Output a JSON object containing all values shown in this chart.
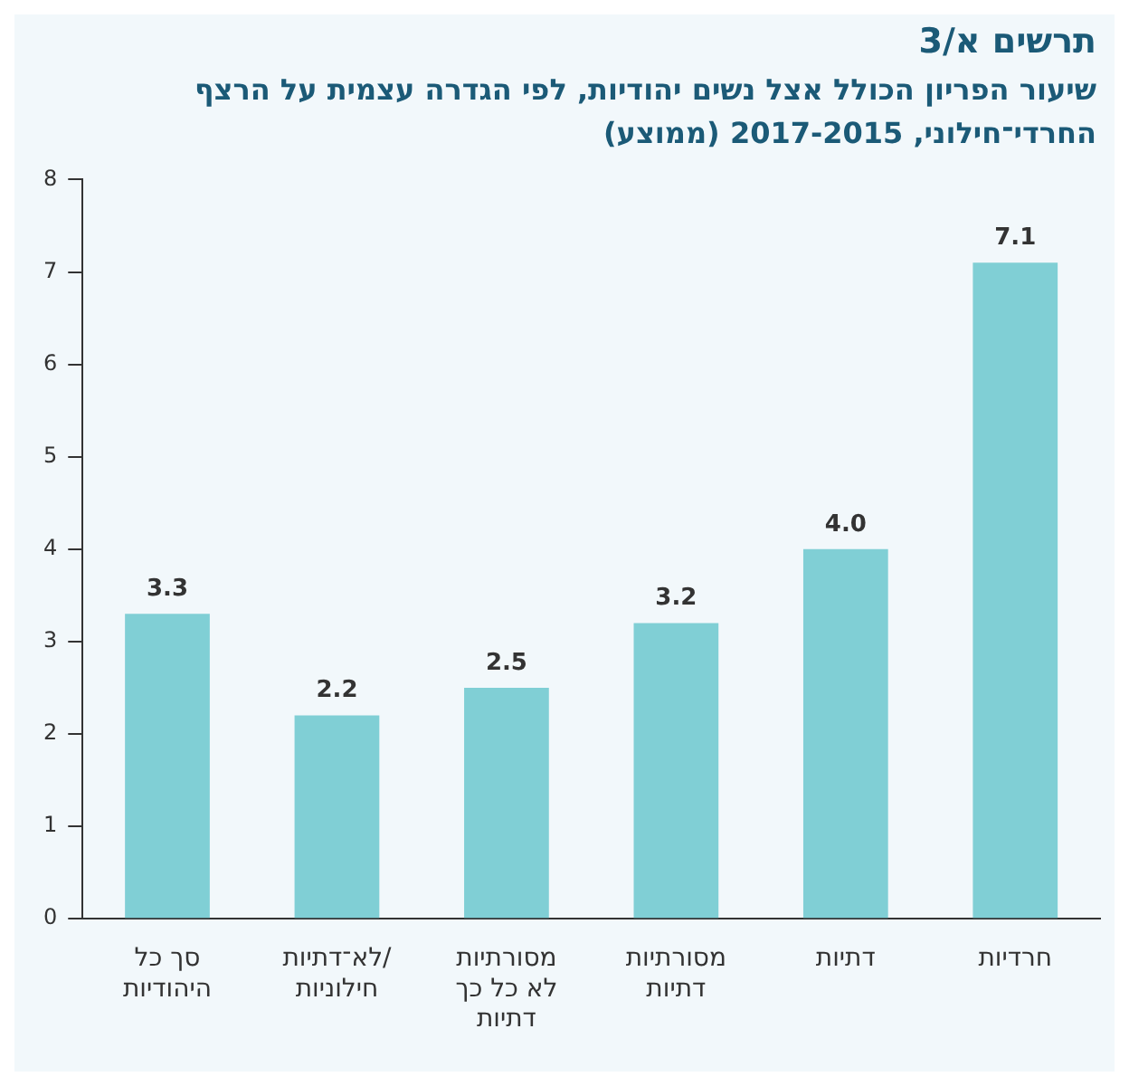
{
  "chart_data": {
    "type": "bar",
    "title": "תרשים א/3",
    "subtitle": "שיעור הפריון הכולל אצל נשים יהודיות, לפי הגדרה עצמית על הרצף החרדי־חילוני, 2017-2015 (ממוצע)",
    "categories": [
      "סך כל\nהיהודיות",
      "לא־דתיות/\nחילוניות",
      "מסורתיות\nלא כל כך\nדתיות",
      "מסורתיות\nדתיות",
      "דתיות",
      "חרדיות"
    ],
    "values": [
      3.3,
      2.2,
      2.5,
      3.2,
      4.0,
      7.1
    ],
    "value_labels": [
      "3.3",
      "2.2",
      "2.5",
      "3.2",
      "4.0",
      "7.1"
    ],
    "color": "#80cfd5",
    "ylim": [
      0,
      8
    ],
    "yticks": [
      0,
      1,
      2,
      3,
      4,
      5,
      6,
      7,
      8
    ],
    "grid": false,
    "legend": false
  }
}
